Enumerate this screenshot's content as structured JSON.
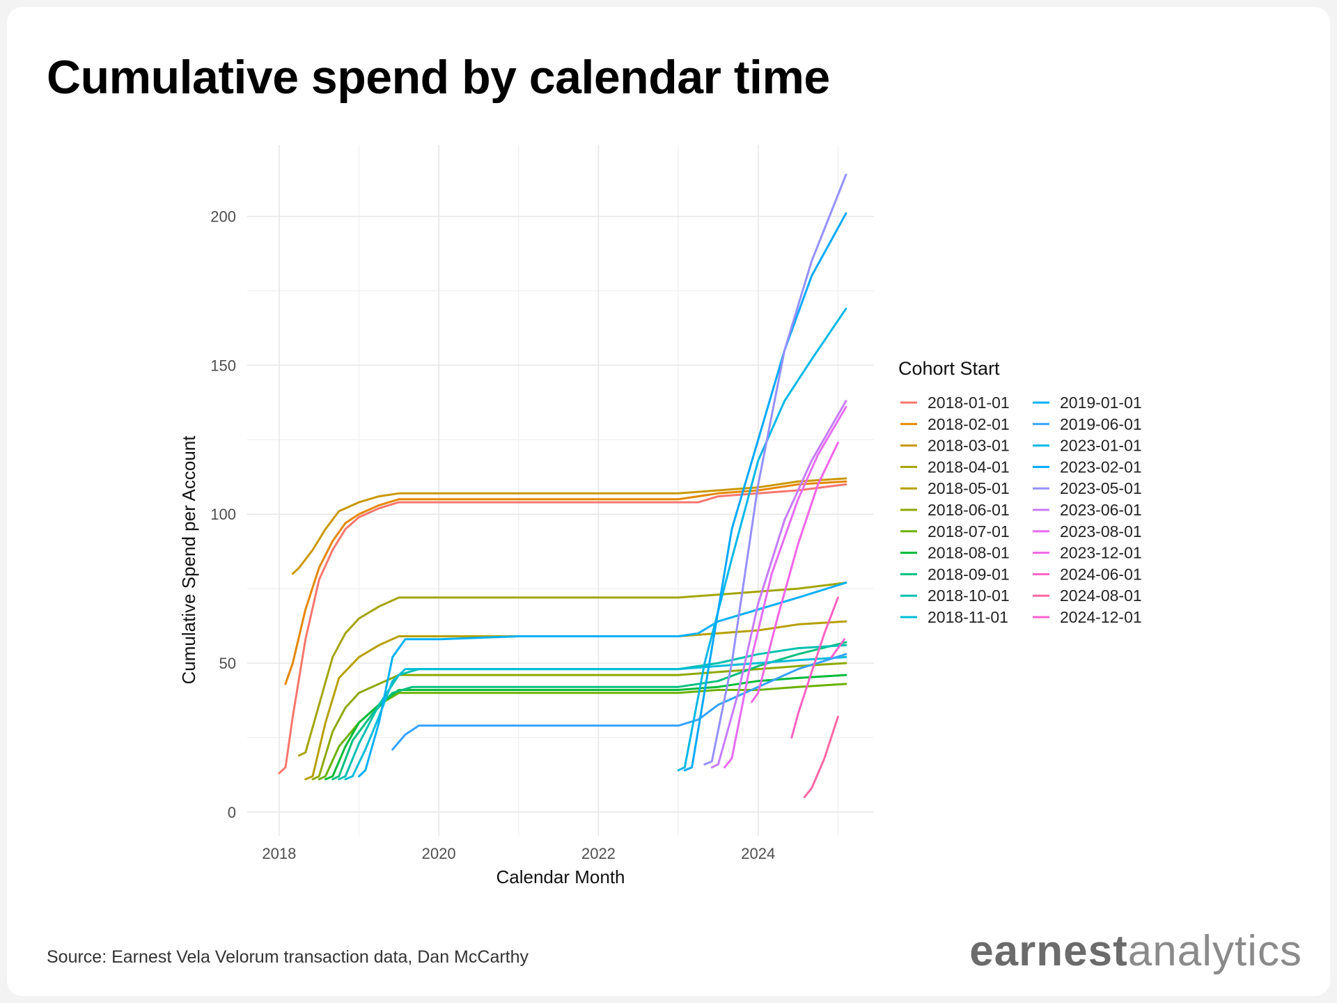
{
  "title": "Cumulative spend by calendar time",
  "source": "Source: Earnest Vela Velorum transaction data, Dan McCarthy",
  "logo": {
    "bold": "earnest",
    "light": "analytics"
  },
  "chart_data": {
    "type": "line",
    "xlabel": "Calendar Month",
    "ylabel": "Cumulative Spend per Account",
    "xlim": [
      2017.6,
      2025.45
    ],
    "ylim": [
      -8,
      224
    ],
    "xticks": [
      2018,
      2020,
      2022,
      2024
    ],
    "yticks": [
      0,
      50,
      100,
      150,
      200
    ],
    "grid": true,
    "legend": {
      "title": "Cohort Start",
      "placement": "right",
      "columns": 2
    },
    "series": [
      {
        "name": "2018-01-01",
        "color": "#F8766D",
        "points": [
          [
            2018.0,
            13
          ],
          [
            2018.08,
            15
          ],
          [
            2018.17,
            32
          ],
          [
            2018.33,
            58
          ],
          [
            2018.5,
            78
          ],
          [
            2018.67,
            88
          ],
          [
            2018.83,
            95
          ],
          [
            2019.0,
            99
          ],
          [
            2019.25,
            102
          ],
          [
            2019.5,
            104
          ],
          [
            2020.0,
            104
          ],
          [
            2021.0,
            104
          ],
          [
            2022.0,
            104
          ],
          [
            2023.0,
            104
          ],
          [
            2023.25,
            104
          ],
          [
            2023.5,
            106
          ],
          [
            2024.0,
            107
          ],
          [
            2024.5,
            108
          ],
          [
            2025.1,
            110
          ]
        ]
      },
      {
        "name": "2018-02-01",
        "color": "#E58700",
        "points": [
          [
            2018.08,
            43
          ],
          [
            2018.17,
            50
          ],
          [
            2018.33,
            68
          ],
          [
            2018.5,
            82
          ],
          [
            2018.67,
            91
          ],
          [
            2018.83,
            97
          ],
          [
            2019.0,
            100
          ],
          [
            2019.25,
            103
          ],
          [
            2019.5,
            105
          ],
          [
            2020.0,
            105
          ],
          [
            2021.0,
            105
          ],
          [
            2022.0,
            105
          ],
          [
            2023.0,
            105
          ],
          [
            2023.5,
            107
          ],
          [
            2024.0,
            108
          ],
          [
            2024.5,
            110
          ],
          [
            2025.1,
            111
          ]
        ]
      },
      {
        "name": "2018-03-01",
        "color": "#C99800",
        "points": [
          [
            2018.17,
            80
          ],
          [
            2018.25,
            82
          ],
          [
            2018.42,
            88
          ],
          [
            2018.58,
            95
          ],
          [
            2018.75,
            101
          ],
          [
            2019.0,
            104
          ],
          [
            2019.25,
            106
          ],
          [
            2019.5,
            107
          ],
          [
            2020.0,
            107
          ],
          [
            2021.0,
            107
          ],
          [
            2022.0,
            107
          ],
          [
            2023.0,
            107
          ],
          [
            2023.5,
            108
          ],
          [
            2024.0,
            109
          ],
          [
            2024.5,
            111
          ],
          [
            2025.1,
            112
          ]
        ]
      },
      {
        "name": "2018-04-01",
        "color": "#A3A500",
        "points": [
          [
            2018.25,
            19
          ],
          [
            2018.33,
            20
          ],
          [
            2018.5,
            36
          ],
          [
            2018.67,
            52
          ],
          [
            2018.83,
            60
          ],
          [
            2019.0,
            65
          ],
          [
            2019.25,
            69
          ],
          [
            2019.5,
            72
          ],
          [
            2020.0,
            72
          ],
          [
            2021.0,
            72
          ],
          [
            2022.0,
            72
          ],
          [
            2023.0,
            72
          ],
          [
            2023.5,
            73
          ],
          [
            2024.0,
            74
          ],
          [
            2024.5,
            75
          ],
          [
            2025.1,
            77
          ]
        ]
      },
      {
        "name": "2018-05-01",
        "color": "#B6A000",
        "points": [
          [
            2018.33,
            11
          ],
          [
            2018.42,
            12
          ],
          [
            2018.58,
            30
          ],
          [
            2018.75,
            45
          ],
          [
            2019.0,
            52
          ],
          [
            2019.25,
            56
          ],
          [
            2019.5,
            59
          ],
          [
            2020.0,
            59
          ],
          [
            2021.0,
            59
          ],
          [
            2022.0,
            59
          ],
          [
            2023.0,
            59
          ],
          [
            2023.5,
            60
          ],
          [
            2024.0,
            61
          ],
          [
            2024.5,
            63
          ],
          [
            2025.1,
            64
          ]
        ]
      },
      {
        "name": "2018-06-01",
        "color": "#8EA900",
        "points": [
          [
            2018.42,
            11
          ],
          [
            2018.5,
            12
          ],
          [
            2018.67,
            27
          ],
          [
            2018.83,
            35
          ],
          [
            2019.0,
            40
          ],
          [
            2019.25,
            43
          ],
          [
            2019.5,
            46
          ],
          [
            2020.0,
            46
          ],
          [
            2021.0,
            46
          ],
          [
            2022.0,
            46
          ],
          [
            2023.0,
            46
          ],
          [
            2023.5,
            47
          ],
          [
            2024.0,
            48
          ],
          [
            2024.5,
            49
          ],
          [
            2025.1,
            50
          ]
        ]
      },
      {
        "name": "2018-07-01",
        "color": "#6BB100",
        "points": [
          [
            2018.5,
            11
          ],
          [
            2018.58,
            12
          ],
          [
            2018.75,
            22
          ],
          [
            2019.0,
            30
          ],
          [
            2019.25,
            36
          ],
          [
            2019.5,
            40
          ],
          [
            2020.0,
            40
          ],
          [
            2021.0,
            40
          ],
          [
            2022.0,
            40
          ],
          [
            2023.0,
            40
          ],
          [
            2023.5,
            41
          ],
          [
            2024.0,
            41
          ],
          [
            2024.5,
            42
          ],
          [
            2025.1,
            43
          ]
        ]
      },
      {
        "name": "2018-08-01",
        "color": "#00BA38",
        "points": [
          [
            2018.58,
            11
          ],
          [
            2018.67,
            12
          ],
          [
            2018.83,
            22
          ],
          [
            2019.0,
            30
          ],
          [
            2019.25,
            36
          ],
          [
            2019.5,
            41
          ],
          [
            2020.0,
            41
          ],
          [
            2021.0,
            41
          ],
          [
            2022.0,
            41
          ],
          [
            2023.0,
            41
          ],
          [
            2023.5,
            42
          ],
          [
            2024.0,
            44
          ],
          [
            2024.5,
            45
          ],
          [
            2025.1,
            46
          ]
        ]
      },
      {
        "name": "2018-09-01",
        "color": "#00BF7D",
        "points": [
          [
            2018.67,
            11
          ],
          [
            2018.75,
            12
          ],
          [
            2018.92,
            24
          ],
          [
            2019.17,
            33
          ],
          [
            2019.42,
            40
          ],
          [
            2019.67,
            42
          ],
          [
            2020.0,
            42
          ],
          [
            2021.0,
            42
          ],
          [
            2022.0,
            42
          ],
          [
            2023.0,
            42
          ],
          [
            2023.5,
            44
          ],
          [
            2024.0,
            49
          ],
          [
            2024.5,
            53
          ],
          [
            2025.1,
            57
          ]
        ]
      },
      {
        "name": "2018-10-01",
        "color": "#00C0AF",
        "points": [
          [
            2018.75,
            11
          ],
          [
            2018.83,
            12
          ],
          [
            2019.0,
            23
          ],
          [
            2019.25,
            36
          ],
          [
            2019.5,
            46
          ],
          [
            2019.75,
            48
          ],
          [
            2020.0,
            48
          ],
          [
            2021.0,
            48
          ],
          [
            2022.0,
            48
          ],
          [
            2023.0,
            48
          ],
          [
            2023.5,
            50
          ],
          [
            2024.0,
            53
          ],
          [
            2024.5,
            55
          ],
          [
            2025.1,
            56
          ]
        ]
      },
      {
        "name": "2018-11-01",
        "color": "#00BCD8",
        "points": [
          [
            2018.83,
            11
          ],
          [
            2018.92,
            12
          ],
          [
            2019.08,
            21
          ],
          [
            2019.25,
            32
          ],
          [
            2019.42,
            44
          ],
          [
            2019.58,
            48
          ],
          [
            2020.0,
            48
          ],
          [
            2021.0,
            48
          ],
          [
            2022.0,
            48
          ],
          [
            2023.0,
            48
          ],
          [
            2023.5,
            49
          ],
          [
            2024.0,
            50
          ],
          [
            2024.5,
            51
          ],
          [
            2025.1,
            52
          ]
        ]
      },
      {
        "name": "2019-01-01",
        "color": "#00B0F6",
        "points": [
          [
            2019.0,
            12
          ],
          [
            2019.08,
            14
          ],
          [
            2019.25,
            30
          ],
          [
            2019.42,
            52
          ],
          [
            2019.58,
            58
          ],
          [
            2020.0,
            58
          ],
          [
            2021.0,
            59
          ],
          [
            2022.0,
            59
          ],
          [
            2023.0,
            59
          ],
          [
            2023.25,
            60
          ],
          [
            2023.5,
            64
          ],
          [
            2024.0,
            68
          ],
          [
            2024.5,
            72
          ],
          [
            2025.1,
            77
          ]
        ]
      },
      {
        "name": "2019-06-01",
        "color": "#35A2FF",
        "points": [
          [
            2019.42,
            21
          ],
          [
            2019.58,
            26
          ],
          [
            2019.75,
            29
          ],
          [
            2020.0,
            29
          ],
          [
            2021.0,
            29
          ],
          [
            2022.0,
            29
          ],
          [
            2023.0,
            29
          ],
          [
            2023.25,
            31
          ],
          [
            2023.5,
            36
          ],
          [
            2024.0,
            42
          ],
          [
            2024.5,
            48
          ],
          [
            2025.1,
            53
          ]
        ]
      },
      {
        "name": "2023-01-01",
        "color": "#00B8E7",
        "points": [
          [
            2023.0,
            14
          ],
          [
            2023.08,
            15
          ],
          [
            2023.33,
            50
          ],
          [
            2023.67,
            85
          ],
          [
            2024.0,
            118
          ],
          [
            2024.33,
            138
          ],
          [
            2024.67,
            152
          ],
          [
            2025.1,
            169
          ]
        ]
      },
      {
        "name": "2023-02-01",
        "color": "#00A9FF",
        "points": [
          [
            2023.08,
            14
          ],
          [
            2023.17,
            15
          ],
          [
            2023.42,
            55
          ],
          [
            2023.67,
            95
          ],
          [
            2024.0,
            125
          ],
          [
            2024.33,
            155
          ],
          [
            2024.67,
            180
          ],
          [
            2025.1,
            201
          ]
        ]
      },
      {
        "name": "2023-05-01",
        "color": "#9590FF",
        "points": [
          [
            2023.33,
            16
          ],
          [
            2023.42,
            17
          ],
          [
            2023.67,
            50
          ],
          [
            2024.0,
            110
          ],
          [
            2024.33,
            155
          ],
          [
            2024.67,
            185
          ],
          [
            2025.1,
            214
          ]
        ]
      },
      {
        "name": "2023-06-01",
        "color": "#C77CFF",
        "points": [
          [
            2023.42,
            15
          ],
          [
            2023.5,
            16
          ],
          [
            2023.75,
            40
          ],
          [
            2024.0,
            70
          ],
          [
            2024.33,
            98
          ],
          [
            2024.67,
            118
          ],
          [
            2025.1,
            138
          ]
        ]
      },
      {
        "name": "2023-08-01",
        "color": "#E76BF3",
        "points": [
          [
            2023.58,
            15
          ],
          [
            2023.67,
            18
          ],
          [
            2023.92,
            52
          ],
          [
            2024.17,
            80
          ],
          [
            2024.5,
            105
          ],
          [
            2024.75,
            120
          ],
          [
            2025.1,
            136
          ]
        ]
      },
      {
        "name": "2023-12-01",
        "color": "#F265E7",
        "points": [
          [
            2023.92,
            37
          ],
          [
            2024.0,
            40
          ],
          [
            2024.25,
            66
          ],
          [
            2024.5,
            90
          ],
          [
            2024.75,
            110
          ],
          [
            2025.0,
            124
          ]
        ]
      },
      {
        "name": "2024-06-01",
        "color": "#FF61C3",
        "points": [
          [
            2024.42,
            25
          ],
          [
            2024.5,
            33
          ],
          [
            2024.67,
            47
          ],
          [
            2024.83,
            60
          ],
          [
            2025.0,
            72
          ]
        ]
      },
      {
        "name": "2024-08-01",
        "color": "#FF67A4",
        "points": [
          [
            2024.58,
            5
          ],
          [
            2024.67,
            8
          ],
          [
            2024.83,
            18
          ],
          [
            2025.0,
            32
          ]
        ]
      },
      {
        "name": "2024-12-01",
        "color": "#FD61D1",
        "points": [
          [
            2024.92,
            52
          ],
          [
            2025.0,
            55
          ],
          [
            2025.08,
            58
          ]
        ]
      }
    ]
  }
}
